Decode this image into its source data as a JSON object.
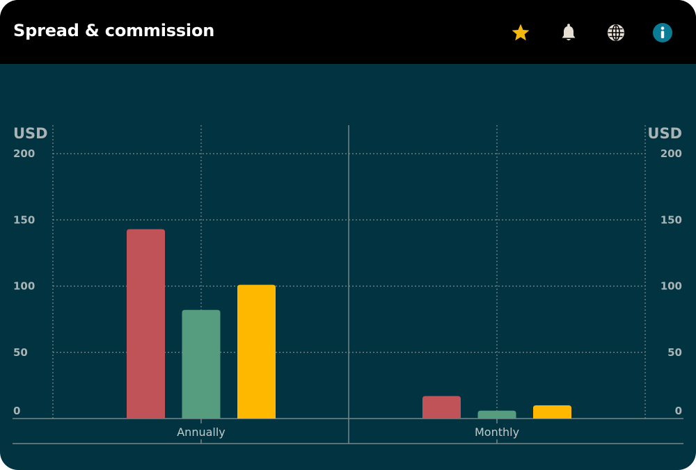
{
  "header": {
    "title": "Spread & commission",
    "icons": [
      {
        "name": "star-icon",
        "color": "#F5B90E"
      },
      {
        "name": "bell-icon",
        "color": "#E6E0D4"
      },
      {
        "name": "globe-icon",
        "color": "#E6E0D4"
      },
      {
        "name": "info-icon",
        "color": "#0B7C95"
      }
    ]
  },
  "chart_data": {
    "type": "bar",
    "categories": [
      "Annually",
      "Monthly"
    ],
    "series": [
      {
        "values": [
          143,
          17
        ],
        "color": "#C05357"
      },
      {
        "values": [
          82,
          6
        ],
        "color": "#559D7E"
      },
      {
        "values": [
          101,
          10
        ],
        "color": "#FFB800"
      }
    ],
    "ylabel_left": "USD",
    "ylabel_right": "USD",
    "yticks": [
      0,
      50,
      100,
      150,
      200
    ],
    "ylim": [
      0,
      200
    ],
    "grid": true,
    "legend": "none",
    "background": "#013440"
  }
}
